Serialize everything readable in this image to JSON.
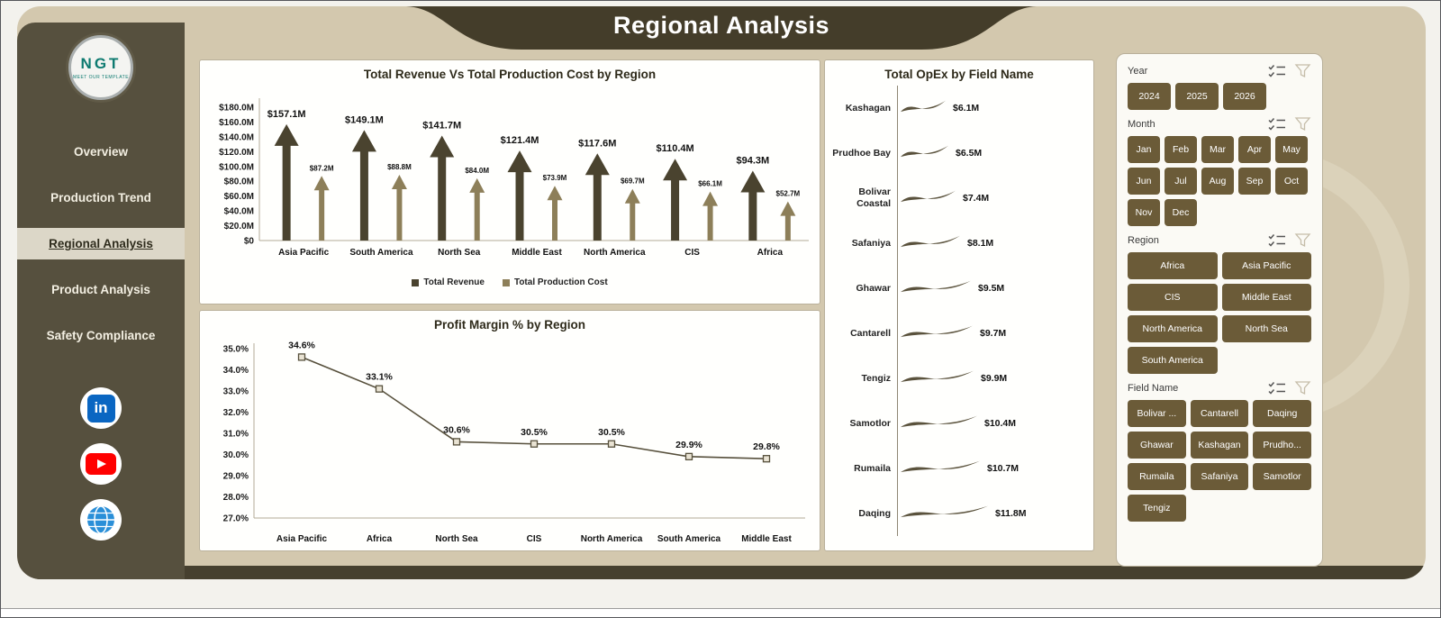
{
  "header": {
    "title": "Regional Analysis"
  },
  "sidebar": {
    "logo_text": "NGT",
    "logo_sub": "MEET OUR TEMPLATE",
    "items": [
      {
        "label": "Overview",
        "active": false
      },
      {
        "label": "Production Trend",
        "active": false
      },
      {
        "label": "Regional Analysis",
        "active": true
      },
      {
        "label": "Product Analysis",
        "active": false
      },
      {
        "label": "Safety Compliance",
        "active": false
      }
    ],
    "social_icons": [
      "linkedin-icon",
      "youtube-icon",
      "web-icon"
    ]
  },
  "colors": {
    "revenue": "#4a432f",
    "production_cost": "#8d7f59",
    "line": "#57503c",
    "marker_fill": "#e9e3d3",
    "button": "#6b5b38",
    "sidebar_bg": "#56503e",
    "canvas_bg": "#d3c8ae",
    "ribbon_bg": "#443d2a",
    "axis_text": "#1a1a1a",
    "swoosh": "#5a523c"
  },
  "chart_data": [
    {
      "type": "bar",
      "title": "Total Revenue Vs Total Production Cost by Region",
      "categories": [
        "Asia Pacific",
        "South America",
        "North Sea",
        "Middle East",
        "North America",
        "CIS",
        "Africa"
      ],
      "series": [
        {
          "name": "Total Revenue",
          "color": "#4a432f",
          "values": [
            157.1,
            149.1,
            141.7,
            121.4,
            117.6,
            110.4,
            94.3
          ],
          "labels": [
            "$157.1M",
            "$149.1M",
            "$141.7M",
            "$121.4M",
            "$117.6M",
            "$110.4M",
            "$94.3M"
          ]
        },
        {
          "name": "Total Production Cost",
          "color": "#8d7f59",
          "values": [
            87.2,
            88.8,
            84.0,
            73.9,
            69.7,
            66.1,
            52.7
          ],
          "labels": [
            "$87.2M",
            "$88.8M",
            "$84.0M",
            "$73.9M",
            "$69.7M",
            "$66.1M",
            "$52.7M"
          ]
        }
      ],
      "ylim": [
        0,
        180
      ],
      "yticks": [
        {
          "label": "$180.0M",
          "value": 180
        },
        {
          "label": "$160.0M",
          "value": 160
        },
        {
          "label": "$140.0M",
          "value": 140
        },
        {
          "label": "$120.0M",
          "value": 120
        },
        {
          "label": "$100.0M",
          "value": 100
        },
        {
          "label": "$80.0M",
          "value": 80
        },
        {
          "label": "$60.0M",
          "value": 60
        },
        {
          "label": "$40.0M",
          "value": 40
        },
        {
          "label": "$20.0M",
          "value": 20
        },
        {
          "label": "$0",
          "value": 0
        }
      ],
      "legend_position": "bottom",
      "grid": false
    },
    {
      "type": "line",
      "title": "Profit Margin % by Region",
      "categories": [
        "Asia Pacific",
        "Africa",
        "North Sea",
        "CIS",
        "North America",
        "South America",
        "Middle East"
      ],
      "values": [
        34.6,
        33.1,
        30.6,
        30.5,
        30.5,
        29.9,
        29.8
      ],
      "labels": [
        "34.6%",
        "33.1%",
        "30.6%",
        "30.5%",
        "30.5%",
        "29.9%",
        "29.8%"
      ],
      "ylim": [
        27,
        35
      ],
      "yticks": [
        {
          "label": "35.0%",
          "value": 35
        },
        {
          "label": "34.0%",
          "value": 34
        },
        {
          "label": "33.0%",
          "value": 33
        },
        {
          "label": "32.0%",
          "value": 32
        },
        {
          "label": "31.0%",
          "value": 31
        },
        {
          "label": "30.0%",
          "value": 30
        },
        {
          "label": "29.0%",
          "value": 29
        },
        {
          "label": "28.0%",
          "value": 28
        },
        {
          "label": "27.0%",
          "value": 27
        }
      ],
      "grid": false
    },
    {
      "type": "bar",
      "orientation": "horizontal",
      "title": "Total OpEx by Field Name",
      "categories": [
        "Kashagan",
        "Prudhoe Bay",
        "Bolivar Coastal",
        "Safaniya",
        "Ghawar",
        "Cantarell",
        "Tengiz",
        "Samotlor",
        "Rumaila",
        "Daqing"
      ],
      "values": [
        6.1,
        6.5,
        7.4,
        8.1,
        9.5,
        9.7,
        9.9,
        10.4,
        10.7,
        11.8
      ],
      "labels": [
        "$6.1M",
        "$6.5M",
        "$7.4M",
        "$8.1M",
        "$9.5M",
        "$9.7M",
        "$9.9M",
        "$10.4M",
        "$10.7M",
        "$11.8M"
      ]
    }
  ],
  "filters": {
    "sections": [
      {
        "label": "Year",
        "layout": "flow-year",
        "options": [
          "2024",
          "2025",
          "2026"
        ]
      },
      {
        "label": "Month",
        "layout": "flow-month",
        "options": [
          "Jan",
          "Feb",
          "Mar",
          "Apr",
          "May",
          "Jun",
          "Jul",
          "Aug",
          "Sep",
          "Oct",
          "Nov",
          "Dec"
        ]
      },
      {
        "label": "Region",
        "layout": "grid2",
        "options": [
          "Africa",
          "Asia Pacific",
          "CIS",
          "Middle East",
          "North America",
          "North Sea",
          "South America"
        ]
      },
      {
        "label": "Field Name",
        "layout": "grid3",
        "options": [
          "Bolivar ...",
          "Cantarell",
          "Daqing",
          "Ghawar",
          "Kashagan",
          "Prudho...",
          "Rumaila",
          "Safaniya",
          "Samotlor",
          "Tengiz"
        ]
      }
    ]
  }
}
